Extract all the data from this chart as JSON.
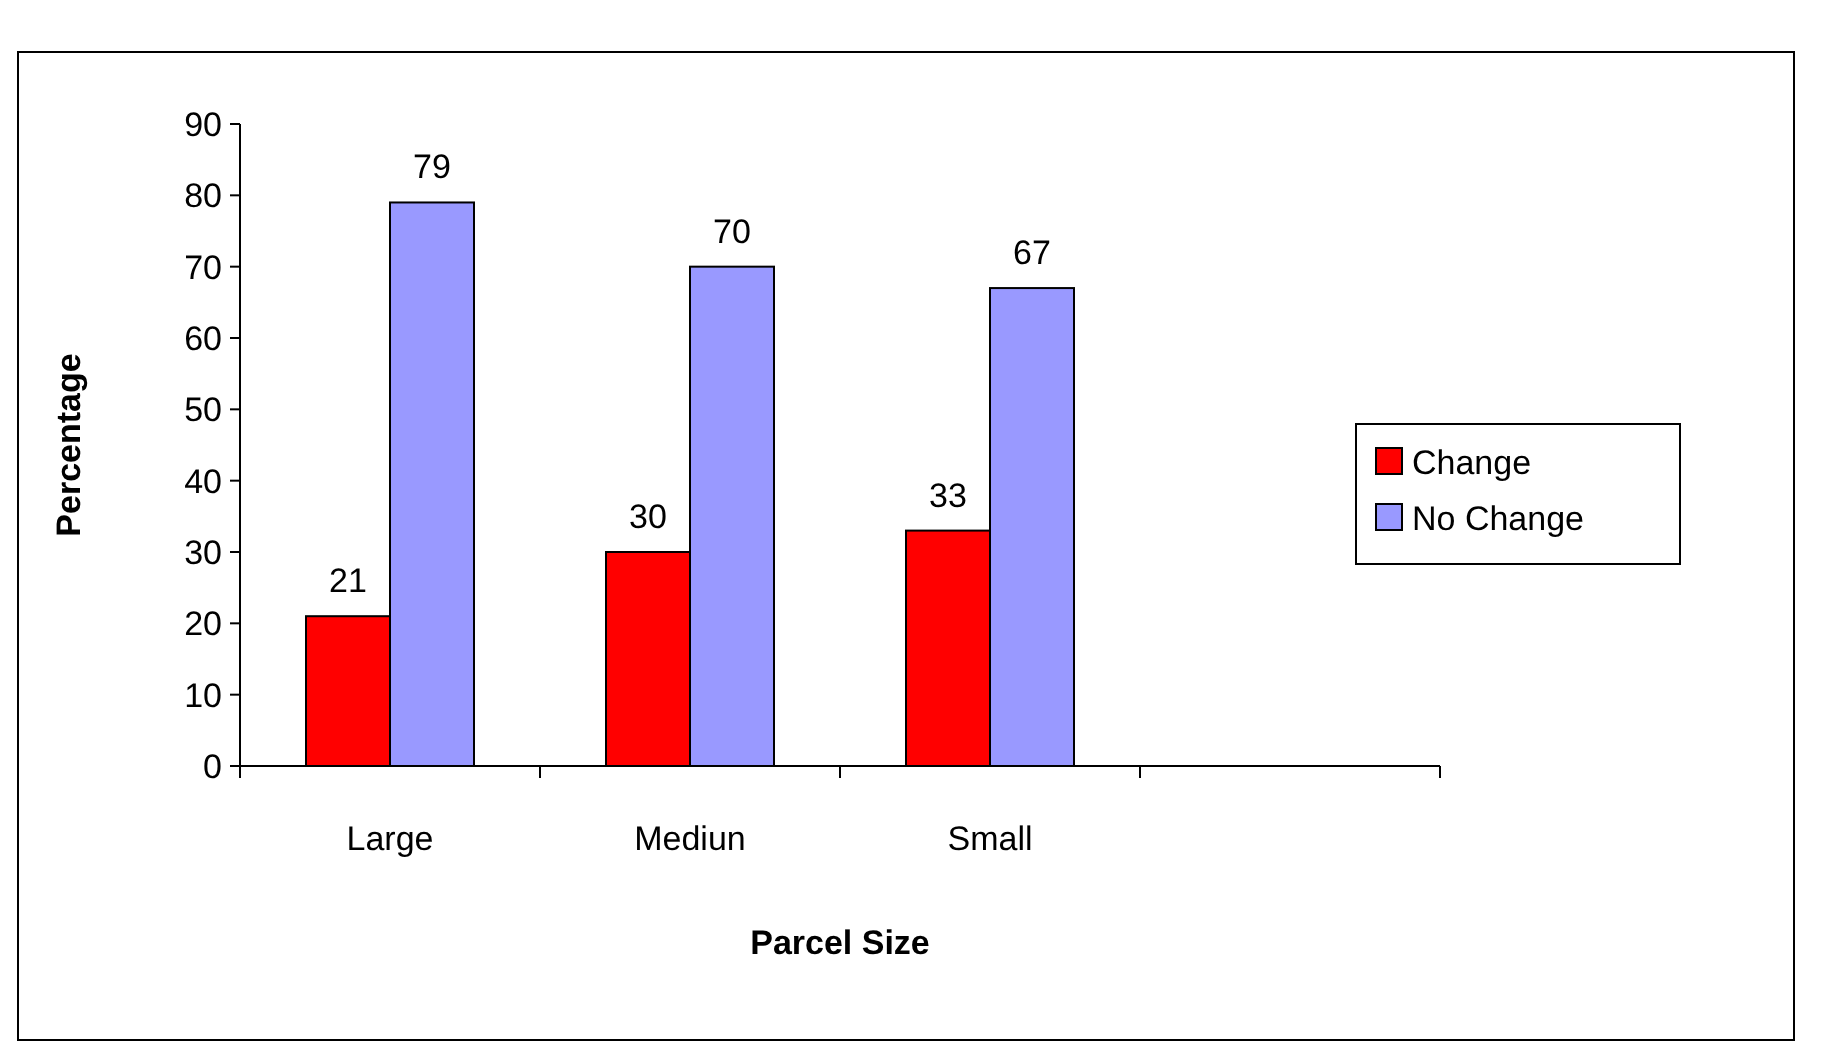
{
  "chart_data": {
    "type": "bar",
    "xlabel": "Parcel Size",
    "ylabel": "Percentage",
    "categories": [
      "Large",
      "Mediun",
      "Small",
      null
    ],
    "series": [
      {
        "name": "Change",
        "color": "#ff0000",
        "values": [
          21,
          30,
          33,
          null
        ]
      },
      {
        "name": "No Change",
        "color": "#9999ff",
        "values": [
          79,
          70,
          67,
          null
        ]
      }
    ],
    "ylim": [
      0,
      90
    ],
    "yticks": [
      0,
      10,
      20,
      30,
      40,
      50,
      60,
      70,
      80,
      90
    ],
    "grid": false,
    "legend": "right",
    "data_labels": true
  }
}
